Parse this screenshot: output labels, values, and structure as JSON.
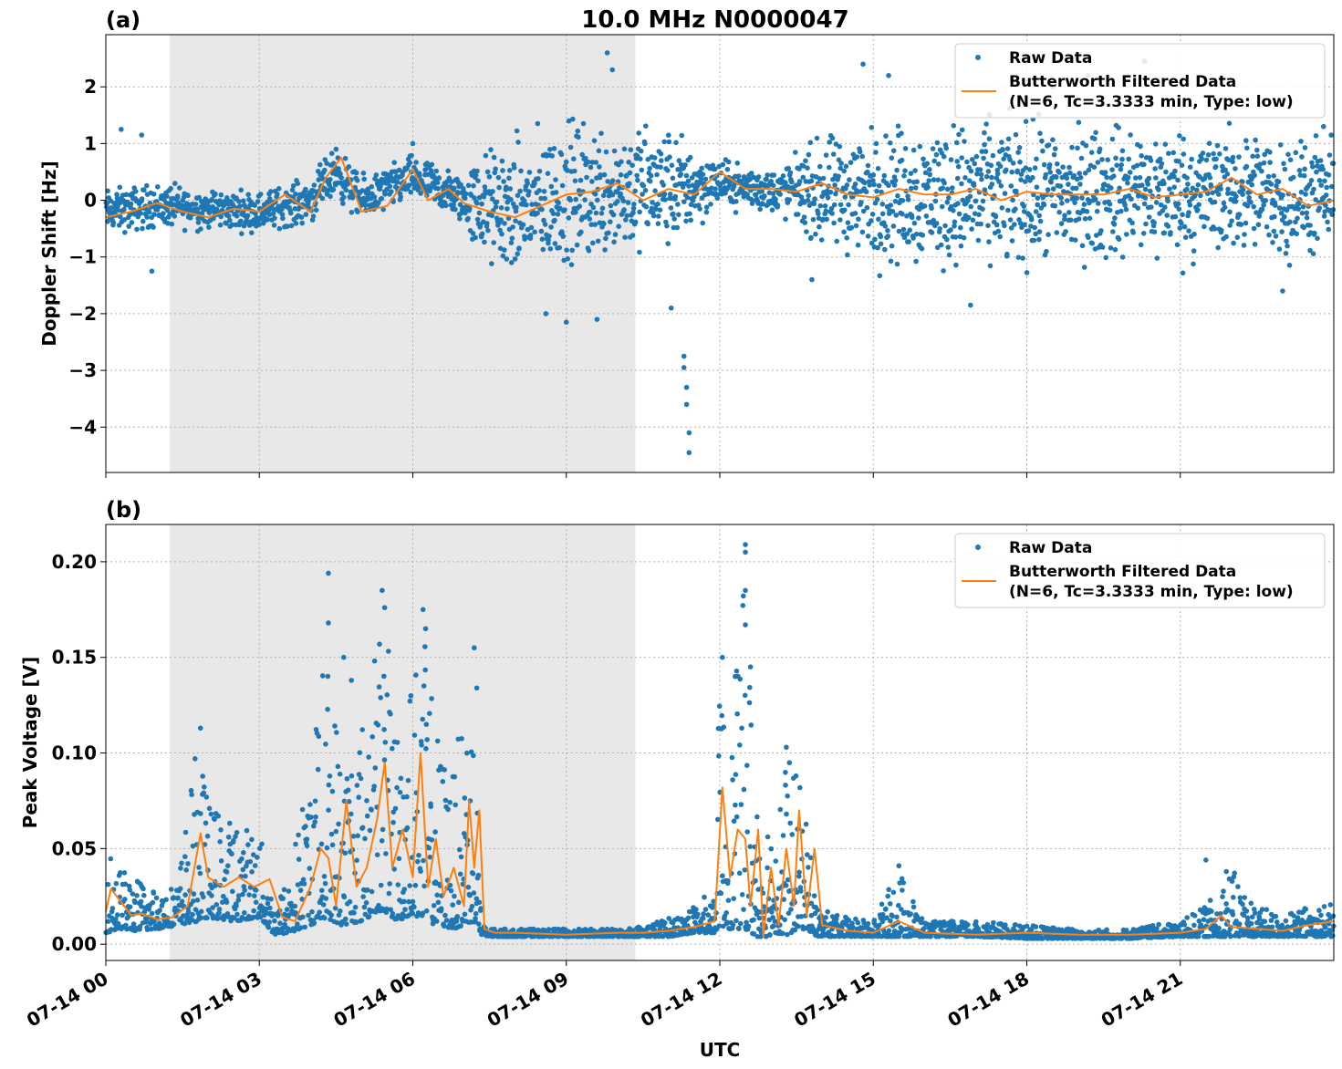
{
  "title": "10.0 MHz N0000047",
  "x_axis": {
    "label": "UTC",
    "range_hours": [
      0,
      24
    ],
    "ticks": [
      {
        "h": 0,
        "label": "07-14 00"
      },
      {
        "h": 3,
        "label": "07-14 03"
      },
      {
        "h": 6,
        "label": "07-14 06"
      },
      {
        "h": 9,
        "label": "07-14 09"
      },
      {
        "h": 12,
        "label": "07-14 12"
      },
      {
        "h": 15,
        "label": "07-14 15"
      },
      {
        "h": 18,
        "label": "07-14 18"
      },
      {
        "h": 21,
        "label": "07-14 21"
      }
    ]
  },
  "legend": {
    "raw": "Raw Data",
    "filtered_line1": "Butterworth Filtered Data",
    "filtered_line2": "(N=6, Tc=3.3333 min, Type: low)"
  },
  "colors": {
    "raw": "#1f77b4",
    "filtered": "#ff7f0e",
    "shade": "#e8e8e8",
    "grid": "#b0b0b0"
  },
  "chart_data": [
    {
      "panel": "(a)",
      "type": "scatter",
      "ylabel": "Doppler Shift [Hz]",
      "ylim": [
        -4.8,
        2.92
      ],
      "yticks": [
        {
          "v": 2,
          "label": "2"
        },
        {
          "v": 1,
          "label": "1"
        },
        {
          "v": 0,
          "label": "0"
        },
        {
          "v": -1,
          "label": "−1"
        },
        {
          "v": -2,
          "label": "−2"
        },
        {
          "v": -3,
          "label": "−3"
        },
        {
          "v": -4,
          "label": "−4"
        }
      ],
      "shaded_hours": [
        1.25,
        10.35
      ],
      "grid": true,
      "legend_position": "upper-right",
      "series": [
        {
          "name": "Raw Data",
          "kind": "points",
          "envelope": {
            "x": [
              0,
              1,
              2,
              3,
              4,
              4.5,
              5,
              6,
              7,
              7.3,
              8,
              9,
              10,
              11,
              12,
              13,
              13.5,
              14,
              15,
              16,
              17,
              18,
              19,
              20,
              21,
              22,
              23,
              24
            ],
            "center": [
              -0.2,
              -0.1,
              -0.15,
              -0.2,
              0.0,
              0.5,
              0.0,
              0.4,
              0.0,
              -0.1,
              -0.2,
              0.1,
              0.2,
              0.2,
              0.3,
              0.15,
              0.2,
              0.1,
              0.1,
              0.1,
              0.1,
              0.1,
              0.1,
              0.15,
              0.1,
              0.15,
              0.05,
              0.0
            ],
            "spread": [
              0.4,
              0.4,
              0.35,
              0.35,
              0.4,
              0.45,
              0.4,
              0.4,
              0.45,
              1.0,
              1.2,
              1.3,
              1.2,
              1.1,
              0.4,
              0.4,
              0.6,
              1.0,
              1.2,
              1.3,
              1.3,
              1.3,
              1.2,
              1.2,
              1.2,
              1.1,
              1.1,
              1.0
            ]
          },
          "outliers": [
            {
              "x": 0.3,
              "y": 1.25
            },
            {
              "x": 0.7,
              "y": 1.15
            },
            {
              "x": 0.9,
              "y": -1.25
            },
            {
              "x": 4.5,
              "y": 0.9
            },
            {
              "x": 6.0,
              "y": 1.0
            },
            {
              "x": 8.6,
              "y": -2.0
            },
            {
              "x": 9.0,
              "y": -2.15
            },
            {
              "x": 9.6,
              "y": -2.1
            },
            {
              "x": 9.8,
              "y": 2.6
            },
            {
              "x": 9.9,
              "y": 2.3
            },
            {
              "x": 11.3,
              "y": -2.75
            },
            {
              "x": 11.3,
              "y": -2.95
            },
            {
              "x": 11.35,
              "y": -3.3
            },
            {
              "x": 11.35,
              "y": -3.6
            },
            {
              "x": 11.4,
              "y": -4.1
            },
            {
              "x": 11.4,
              "y": -4.45
            },
            {
              "x": 11.05,
              "y": -1.9
            },
            {
              "x": 13.8,
              "y": -1.4
            },
            {
              "x": 14.8,
              "y": 2.4
            },
            {
              "x": 15.3,
              "y": 2.2
            },
            {
              "x": 16.9,
              "y": -1.85
            },
            {
              "x": 18.5,
              "y": 2.0
            },
            {
              "x": 19.2,
              "y": 2.2
            },
            {
              "x": 20.3,
              "y": 2.45
            },
            {
              "x": 23.0,
              "y": -1.6
            },
            {
              "x": 23.8,
              "y": 1.3
            }
          ]
        },
        {
          "name": "Butterworth Filtered Data (N=6, Tc=3.3333 min, Type: low)",
          "kind": "line",
          "x": [
            0,
            0.5,
            1,
            1.5,
            2,
            2.5,
            3,
            3.5,
            4,
            4.3,
            4.6,
            5,
            5.5,
            6,
            6.3,
            6.7,
            7,
            7.5,
            8,
            8.5,
            9,
            9.5,
            10,
            10.5,
            11,
            11.5,
            12,
            12.5,
            13,
            13.5,
            14,
            14.5,
            15,
            15.5,
            16,
            16.5,
            17,
            17.5,
            18,
            18.5,
            19,
            19.5,
            20,
            20.5,
            21,
            21.5,
            22,
            22.5,
            23,
            23.5,
            24
          ],
          "y": [
            -0.3,
            -0.2,
            -0.05,
            -0.2,
            -0.3,
            -0.15,
            -0.2,
            0.1,
            -0.2,
            0.4,
            0.75,
            -0.2,
            -0.1,
            0.55,
            0.0,
            0.2,
            -0.05,
            -0.2,
            -0.3,
            -0.1,
            0.1,
            0.15,
            0.3,
            0.0,
            0.2,
            0.1,
            0.5,
            0.2,
            0.2,
            0.15,
            0.3,
            0.1,
            0.05,
            0.2,
            0.1,
            0.1,
            0.2,
            0.0,
            0.15,
            0.1,
            0.1,
            0.1,
            0.2,
            0.05,
            0.1,
            0.15,
            0.4,
            0.1,
            0.2,
            -0.1,
            0.0
          ]
        }
      ]
    },
    {
      "panel": "(b)",
      "type": "scatter",
      "ylabel": "Peak Voltage [V]",
      "xlabel": "UTC",
      "ylim": [
        -0.0085,
        0.2195
      ],
      "yticks": [
        {
          "v": 0.2,
          "label": "0.20"
        },
        {
          "v": 0.15,
          "label": "0.15"
        },
        {
          "v": 0.1,
          "label": "0.10"
        },
        {
          "v": 0.05,
          "label": "0.05"
        },
        {
          "v": 0.0,
          "label": "0.00"
        }
      ],
      "shaded_hours": [
        1.25,
        10.35
      ],
      "grid": true,
      "legend_position": "upper-right",
      "series": [
        {
          "name": "Raw Data",
          "kind": "points",
          "envelope": {
            "x": [
              0,
              0.3,
              0.6,
              1.0,
              1.4,
              1.8,
              2.0,
              2.5,
              3.0,
              3.3,
              3.6,
              4.0,
              4.3,
              4.6,
              5.0,
              5.4,
              5.7,
              6.0,
              6.2,
              6.5,
              6.8,
              7.0,
              7.2,
              7.35,
              7.6,
              8,
              9,
              10,
              10.5,
              11,
              11.5,
              11.9,
              12.0,
              12.2,
              12.5,
              12.7,
              12.9,
              13.1,
              13.3,
              13.5,
              13.7,
              13.9,
              14.3,
              15,
              15.5,
              16,
              17,
              18,
              19,
              20,
              21,
              21.5,
              22,
              22.5,
              23,
              23.5,
              24
            ],
            "low": [
              0.006,
              0.008,
              0.007,
              0.008,
              0.01,
              0.012,
              0.014,
              0.012,
              0.014,
              0.005,
              0.006,
              0.01,
              0.014,
              0.01,
              0.012,
              0.018,
              0.012,
              0.016,
              0.012,
              0.01,
              0.008,
              0.01,
              0.012,
              0.004,
              0.004,
              0.004,
              0.004,
              0.004,
              0.004,
              0.004,
              0.006,
              0.006,
              0.01,
              0.008,
              0.008,
              0.004,
              0.004,
              0.006,
              0.004,
              0.008,
              0.008,
              0.004,
              0.004,
              0.004,
              0.004,
              0.004,
              0.004,
              0.003,
              0.003,
              0.003,
              0.004,
              0.004,
              0.004,
              0.004,
              0.004,
              0.004,
              0.004
            ],
            "high": [
              0.055,
              0.04,
              0.035,
              0.03,
              0.032,
              0.11,
              0.075,
              0.065,
              0.06,
              0.02,
              0.04,
              0.1,
              0.16,
              0.11,
              0.12,
              0.18,
              0.12,
              0.15,
              0.165,
              0.11,
              0.09,
              0.13,
              0.135,
              0.01,
              0.008,
              0.008,
              0.008,
              0.008,
              0.01,
              0.014,
              0.02,
              0.03,
              0.15,
              0.1,
              0.2,
              0.085,
              0.08,
              0.07,
              0.1,
              0.09,
              0.07,
              0.02,
              0.015,
              0.012,
              0.04,
              0.012,
              0.012,
              0.01,
              0.008,
              0.008,
              0.012,
              0.02,
              0.04,
              0.02,
              0.015,
              0.02,
              0.022
            ]
          },
          "outliers": [
            {
              "x": 1.85,
              "y": 0.113
            },
            {
              "x": 4.35,
              "y": 0.194
            },
            {
              "x": 4.35,
              "y": 0.168
            },
            {
              "x": 4.65,
              "y": 0.15
            },
            {
              "x": 4.8,
              "y": 0.138
            },
            {
              "x": 5.4,
              "y": 0.185
            },
            {
              "x": 5.45,
              "y": 0.176
            },
            {
              "x": 6.2,
              "y": 0.175
            },
            {
              "x": 6.25,
              "y": 0.165
            },
            {
              "x": 7.2,
              "y": 0.155
            },
            {
              "x": 7.25,
              "y": 0.134
            },
            {
              "x": 12.5,
              "y": 0.209
            },
            {
              "x": 12.5,
              "y": 0.205
            },
            {
              "x": 12.5,
              "y": 0.185
            },
            {
              "x": 12.5,
              "y": 0.167
            },
            {
              "x": 12.05,
              "y": 0.15
            },
            {
              "x": 12.3,
              "y": 0.14
            },
            {
              "x": 12.6,
              "y": 0.145
            },
            {
              "x": 13.3,
              "y": 0.103
            },
            {
              "x": 15.5,
              "y": 0.041
            },
            {
              "x": 21.5,
              "y": 0.044
            },
            {
              "x": 21.9,
              "y": 0.038
            }
          ]
        },
        {
          "name": "Butterworth Filtered Data (N=6, Tc=3.3333 min, Type: low)",
          "kind": "line",
          "x": [
            0,
            0.1,
            0.3,
            0.5,
            0.7,
            1.0,
            1.3,
            1.6,
            1.85,
            2.0,
            2.3,
            2.6,
            2.9,
            3.2,
            3.45,
            3.7,
            4.0,
            4.2,
            4.35,
            4.5,
            4.7,
            4.9,
            5.1,
            5.3,
            5.45,
            5.6,
            5.8,
            6.0,
            6.15,
            6.3,
            6.45,
            6.6,
            6.8,
            7.0,
            7.1,
            7.2,
            7.3,
            7.4,
            7.6,
            8,
            9,
            10,
            10.5,
            11,
            11.5,
            11.9,
            12.05,
            12.2,
            12.35,
            12.5,
            12.6,
            12.75,
            12.85,
            13.0,
            13.15,
            13.3,
            13.45,
            13.55,
            13.7,
            13.85,
            14.0,
            14.5,
            15,
            15.5,
            16,
            17,
            18,
            19,
            20,
            21,
            21.5,
            21.8,
            22,
            22.5,
            23,
            23.5,
            24
          ],
          "y": [
            0.017,
            0.029,
            0.022,
            0.015,
            0.016,
            0.013,
            0.014,
            0.02,
            0.058,
            0.035,
            0.03,
            0.035,
            0.03,
            0.034,
            0.014,
            0.012,
            0.03,
            0.05,
            0.045,
            0.02,
            0.075,
            0.03,
            0.04,
            0.065,
            0.095,
            0.04,
            0.06,
            0.035,
            0.1,
            0.03,
            0.055,
            0.025,
            0.04,
            0.02,
            0.075,
            0.04,
            0.07,
            0.008,
            0.006,
            0.006,
            0.005,
            0.006,
            0.006,
            0.007,
            0.009,
            0.012,
            0.082,
            0.035,
            0.06,
            0.055,
            0.02,
            0.06,
            0.004,
            0.04,
            0.01,
            0.05,
            0.02,
            0.07,
            0.015,
            0.05,
            0.01,
            0.007,
            0.006,
            0.012,
            0.006,
            0.005,
            0.006,
            0.005,
            0.005,
            0.006,
            0.008,
            0.015,
            0.009,
            0.008,
            0.007,
            0.01,
            0.012
          ]
        }
      ]
    }
  ]
}
